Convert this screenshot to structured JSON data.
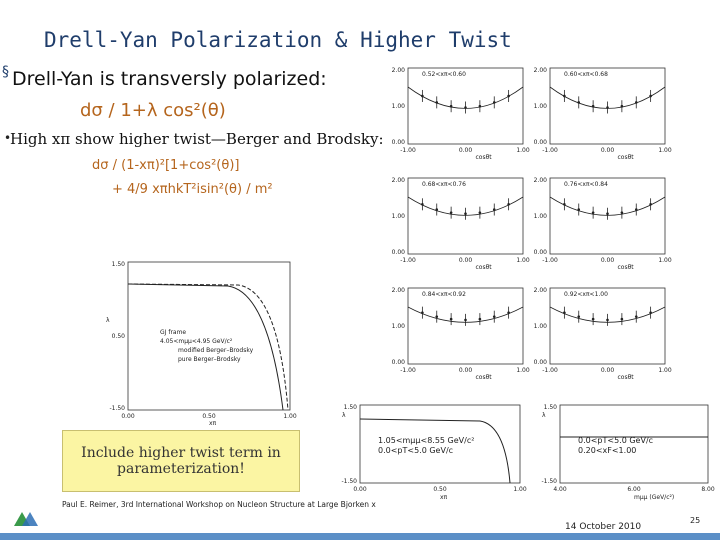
{
  "header": {
    "title": "Drell-Yan Polarization & Higher Twist"
  },
  "bullets": [
    {
      "text": "Drell-Yan is transversly polarized:",
      "formulas": [
        "dσ / 1+λ cos²(θ)"
      ]
    },
    {
      "text": "High xπ show higher twist—Berger and Brodsky:",
      "formulas": [
        "dσ / (1-xπ)²[1+cos²(θ)]",
        "+ 4/9 xπhkT²isin²(θ) / m²"
      ]
    }
  ],
  "panels": [
    {
      "label": "0.52<xπ<0.60",
      "xlabel": "cosθt",
      "yticks": [
        "2.00",
        "1.00",
        "0.00"
      ],
      "xticks": [
        "-1.00",
        "0.00",
        "1.00"
      ]
    },
    {
      "label": "0.60<xπ<0.68",
      "xlabel": "cosθt",
      "yticks": [
        "2.00",
        "1.00",
        "0.00"
      ],
      "xticks": [
        "-1.00",
        "0.00",
        "1.00"
      ]
    },
    {
      "label": "0.68<xπ<0.76",
      "xlabel": "cosθt",
      "yticks": [
        "2.00",
        "1.00",
        "0.00"
      ],
      "xticks": [
        "-1.00",
        "0.00",
        "1.00"
      ]
    },
    {
      "label": "0.76<xπ<0.84",
      "xlabel": "cosθt",
      "yticks": [
        "2.00",
        "1.00",
        "0.00"
      ],
      "xticks": [
        "-1.00",
        "0.00",
        "1.00"
      ]
    },
    {
      "label": "0.84<xπ<0.92",
      "xlabel": "cosθt",
      "yticks": [
        "2.00",
        "1.00",
        "0.00"
      ],
      "xticks": [
        "-1.00",
        "0.00",
        "1.00"
      ]
    },
    {
      "label": "0.92<xπ<1.00",
      "xlabel": "cosθt",
      "yticks": [
        "2.00",
        "1.00",
        "0.00"
      ],
      "xticks": [
        "-1.00",
        "0.00",
        "1.00"
      ]
    }
  ],
  "left_plot": {
    "ylabel": "λ",
    "xlabel": "xπ",
    "yticks": [
      "1.50",
      "0.50",
      "-1.50"
    ],
    "xticks": [
      "0.00",
      "0.50",
      "1.00"
    ],
    "legend": [
      "GJ frame",
      "4.05<mμμ<4.95 GeV/c²",
      "modified Berger–Brodsky",
      "pure Berger–Brodsky"
    ]
  },
  "bottom_plots": [
    {
      "ylabel": "λ",
      "xlabel": "xπ",
      "yticks": [
        "1.50",
        "-1.50"
      ],
      "xticks": [
        "0.00",
        "0.50",
        "1.00"
      ],
      "legend": [
        "1.05<mμμ<8.55 GeV/c²",
        "0.0<pT<5.0 GeV/c"
      ]
    },
    {
      "ylabel": "λ",
      "xlabel": "mμμ (GeV/c²)",
      "yticks": [
        "1.50",
        "-1.50"
      ],
      "xticks": [
        "4.00",
        "6.00",
        "8.00"
      ],
      "legend": [
        "0.0<pT<5.0 GeV/c",
        "0.20<xF<1.00"
      ]
    }
  ],
  "callout": "Include higher twist term in parameterization!",
  "footer": {
    "citation": "Paul E. Reimer, 3rd International Workshop on Nucleon Structure at Large Bjorken x",
    "date": "14 October 2010",
    "page": "25"
  }
}
